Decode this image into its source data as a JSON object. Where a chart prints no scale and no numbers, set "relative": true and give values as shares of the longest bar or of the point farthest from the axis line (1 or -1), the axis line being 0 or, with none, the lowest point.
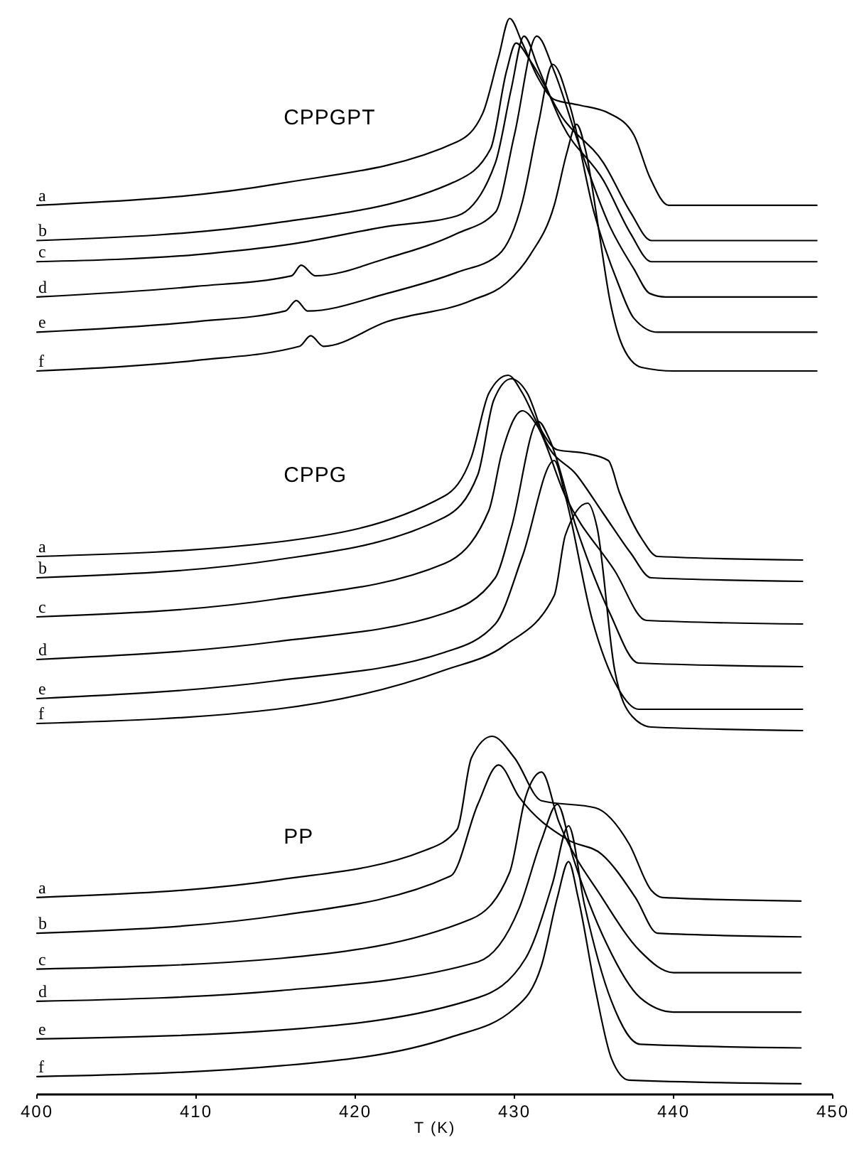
{
  "chart_data": [
    {
      "type": "line",
      "title": "CPPGPT",
      "relative": true,
      "xlim": [
        400,
        450
      ],
      "tick_labels": false,
      "series": [
        {
          "name": "a",
          "color": "#000000",
          "x": [
            400,
            415,
            426.4,
            428,
            429,
            429.7,
            430.5,
            431.5,
            432.5,
            434,
            436,
            437.5,
            438.5,
            439.7,
            449
          ],
          "values": [
            0.47,
            0.53,
            0.65,
            0.73,
            0.89,
            1.0,
            0.93,
            0.83,
            0.77,
            0.755,
            0.73,
            0.67,
            0.55,
            0.47,
            0.47
          ]
        },
        {
          "name": "b",
          "color": "#000000",
          "x": [
            400,
            415,
            426.4,
            428.5,
            429.5,
            430.1,
            431,
            433,
            435.6,
            437.3,
            438.6,
            449
          ],
          "values": [
            0.37,
            0.42,
            0.54,
            0.63,
            0.85,
            0.93,
            0.88,
            0.72,
            0.59,
            0.45,
            0.37,
            0.37
          ]
        },
        {
          "name": "c",
          "color": "#000000",
          "x": [
            400,
            410,
            416,
            422,
            426.4,
            428.8,
            429.8,
            430.6,
            431.5,
            433,
            435.6,
            437.3,
            438.6,
            449
          ],
          "values": [
            0.31,
            0.33,
            0.36,
            0.41,
            0.44,
            0.59,
            0.8,
            0.95,
            0.86,
            0.7,
            0.54,
            0.39,
            0.31,
            0.31
          ]
        },
        {
          "name": "d",
          "color": "#000000",
          "x": [
            400,
            410,
            416,
            416.6,
            417.5,
            422,
            426.4,
            428.8,
            430,
            431.4,
            432.5,
            434,
            436,
            437.5,
            438.5,
            439.5,
            449
          ],
          "values": [
            0.21,
            0.24,
            0.27,
            0.3,
            0.27,
            0.32,
            0.39,
            0.45,
            0.67,
            0.95,
            0.85,
            0.65,
            0.41,
            0.29,
            0.22,
            0.21,
            0.21
          ]
        },
        {
          "name": "e",
          "color": "#000000",
          "x": [
            400,
            410,
            415.6,
            416.3,
            417,
            422,
            426.4,
            429,
            430.5,
            431.5,
            432.4,
            433.5,
            435,
            436.5,
            437.5,
            439,
            449
          ],
          "values": [
            0.11,
            0.14,
            0.17,
            0.2,
            0.17,
            0.22,
            0.28,
            0.33,
            0.48,
            0.7,
            0.87,
            0.75,
            0.45,
            0.25,
            0.15,
            0.11,
            0.11
          ]
        },
        {
          "name": "f",
          "color": "#000000",
          "x": [
            400,
            410,
            416.5,
            417.2,
            418,
            422,
            427.3,
            429.5,
            431,
            432.5,
            433.3,
            433.9,
            434.5,
            435.3,
            436,
            436.8,
            438,
            440,
            449
          ],
          "values": [
            0.0,
            0.03,
            0.07,
            0.1,
            0.07,
            0.14,
            0.2,
            0.25,
            0.33,
            0.47,
            0.62,
            0.7,
            0.62,
            0.4,
            0.2,
            0.07,
            0.01,
            0.0,
            0.0
          ]
        }
      ]
    },
    {
      "type": "line",
      "title": "CPPG",
      "relative": true,
      "xlim": [
        400,
        450
      ],
      "tick_labels": false,
      "series": [
        {
          "name": "a",
          "color": "#000000",
          "x": [
            400,
            415,
            425.6,
            427.3,
            428.4,
            429.6,
            430.5,
            431.5,
            432.7,
            434.5,
            435.9,
            436.6,
            438,
            439,
            448.1
          ],
          "values": [
            0.49,
            0.53,
            0.66,
            0.77,
            0.95,
            1.0,
            0.95,
            0.86,
            0.79,
            0.78,
            0.76,
            0.67,
            0.54,
            0.49,
            0.48
          ]
        },
        {
          "name": "b",
          "color": "#000000",
          "x": [
            400,
            415,
            425.6,
            427.7,
            428.7,
            429.8,
            430.8,
            432,
            433.9,
            435.6,
            437.3,
            438.6,
            448.1
          ],
          "values": [
            0.43,
            0.48,
            0.6,
            0.72,
            0.93,
            0.99,
            0.95,
            0.81,
            0.72,
            0.61,
            0.5,
            0.43,
            0.42
          ]
        },
        {
          "name": "c",
          "color": "#000000",
          "x": [
            400,
            415,
            425.6,
            428.4,
            429.2,
            430.5,
            431.4,
            433.2,
            436.3,
            438.3,
            448.1
          ],
          "values": [
            0.32,
            0.37,
            0.47,
            0.62,
            0.78,
            0.9,
            0.86,
            0.66,
            0.45,
            0.31,
            0.3
          ]
        },
        {
          "name": "d",
          "color": "#000000",
          "x": [
            400,
            415,
            425.6,
            428.8,
            429.8,
            431.5,
            432.2,
            433.9,
            436,
            437.8,
            448.1
          ],
          "values": [
            0.2,
            0.25,
            0.33,
            0.43,
            0.57,
            0.87,
            0.82,
            0.57,
            0.33,
            0.19,
            0.18
          ]
        },
        {
          "name": "e",
          "color": "#000000",
          "x": [
            400,
            415,
            425.6,
            428.8,
            430.5,
            432.5,
            433.2,
            434.9,
            436.5,
            437.8,
            448.1
          ],
          "values": [
            0.09,
            0.14,
            0.22,
            0.3,
            0.49,
            0.76,
            0.66,
            0.31,
            0.12,
            0.06,
            0.06
          ]
        },
        {
          "name": "f",
          "color": "#000000",
          "x": [
            400,
            415,
            425.6,
            429.4,
            432.5,
            433.2,
            434.6,
            435.2,
            436.3,
            437.4,
            438.6,
            448.1
          ],
          "values": [
            0.02,
            0.06,
            0.17,
            0.24,
            0.38,
            0.55,
            0.64,
            0.57,
            0.17,
            0.04,
            0.01,
            0.0
          ]
        }
      ]
    },
    {
      "type": "line",
      "title": "PP",
      "xlabel": "T (K)",
      "relative": true,
      "xlim": [
        400,
        450
      ],
      "xticks": [
        400,
        410,
        420,
        430,
        440,
        450
      ],
      "tick_labels": "x",
      "series": [
        {
          "name": "a",
          "color": "#000000",
          "x": [
            400,
            415.3,
            424.3,
            426.4,
            427.3,
            428.6,
            430,
            431.7,
            435.1,
            437.2,
            438.6,
            439.3,
            448
          ],
          "values": [
            0.55,
            0.6,
            0.68,
            0.74,
            0.94,
            1.0,
            0.94,
            0.82,
            0.8,
            0.7,
            0.57,
            0.55,
            0.54
          ]
        },
        {
          "name": "b",
          "color": "#000000",
          "x": [
            400,
            415.3,
            426,
            427.7,
            429,
            430.3,
            433.4,
            435.5,
            437.6,
            439,
            448
          ],
          "values": [
            0.45,
            0.5,
            0.61,
            0.81,
            0.92,
            0.83,
            0.71,
            0.67,
            0.55,
            0.45,
            0.44
          ]
        },
        {
          "name": "c",
          "color": "#000000",
          "x": [
            400,
            415.3,
            427.3,
            429.7,
            430.7,
            431.7,
            432.8,
            435.5,
            437.9,
            440,
            448
          ],
          "values": [
            0.35,
            0.38,
            0.49,
            0.62,
            0.83,
            0.9,
            0.76,
            0.55,
            0.4,
            0.34,
            0.34
          ]
        },
        {
          "name": "d",
          "color": "#000000",
          "x": [
            400,
            415.3,
            427.7,
            430.3,
            431.7,
            432.7,
            433.7,
            435.8,
            437.9,
            440,
            448
          ],
          "values": [
            0.26,
            0.29,
            0.37,
            0.52,
            0.71,
            0.81,
            0.66,
            0.42,
            0.27,
            0.23,
            0.23
          ]
        },
        {
          "name": "e",
          "color": "#000000",
          "x": [
            400,
            415.3,
            427.7,
            430.7,
            432.4,
            433.4,
            434.4,
            436.1,
            437.9,
            448
          ],
          "values": [
            0.155,
            0.18,
            0.27,
            0.38,
            0.59,
            0.75,
            0.53,
            0.26,
            0.14,
            0.13
          ]
        },
        {
          "name": "f",
          "color": "#000000",
          "x": [
            400,
            415.3,
            426,
            430,
            431.7,
            432.7,
            433.4,
            434,
            435.1,
            436.1,
            437.2,
            448
          ],
          "values": [
            0.05,
            0.08,
            0.16,
            0.24,
            0.36,
            0.55,
            0.65,
            0.55,
            0.29,
            0.1,
            0.04,
            0.03
          ]
        }
      ]
    }
  ]
}
